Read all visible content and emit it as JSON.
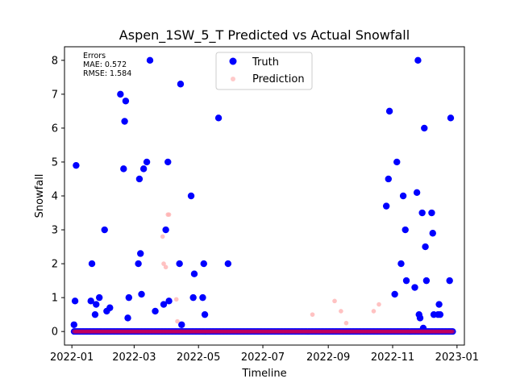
{
  "chart_data": {
    "type": "scatter",
    "title": "Aspen_1SW_5_T Predicted vs Actual Snowfall",
    "xlabel": "Timeline",
    "ylabel": "Snowfall",
    "xlim": [
      "2021-12-25",
      "2023-01-08"
    ],
    "ylim": [
      -0.4,
      8.4
    ],
    "x_ticks": [
      "2022-01",
      "2022-03",
      "2022-05",
      "2022-07",
      "2022-09",
      "2022-11",
      "2023-01"
    ],
    "y_ticks": [
      0,
      1,
      2,
      3,
      4,
      5,
      6,
      7,
      8
    ],
    "legend": {
      "placement": "upper-center",
      "entries": [
        "Truth",
        "Prediction"
      ]
    },
    "errors_box": {
      "heading": "Errors",
      "mae": "MAE: 0.572",
      "rmse": "RMSE: 1.584"
    },
    "colors": {
      "truth": "#0000ff",
      "prediction": "#ffb3b3",
      "zero_marker": "#cc0055"
    },
    "series": [
      {
        "name": "Truth",
        "points": [
          [
            "2022-01-03",
            0.2
          ],
          [
            "2022-01-04",
            0.9
          ],
          [
            "2022-01-05",
            4.9
          ],
          [
            "2022-01-19",
            0.9
          ],
          [
            "2022-01-20",
            2.0
          ],
          [
            "2022-01-23",
            0.5
          ],
          [
            "2022-01-24",
            0.8
          ],
          [
            "2022-01-27",
            1.0
          ],
          [
            "2022-02-01",
            3.0
          ],
          [
            "2022-02-03",
            0.6
          ],
          [
            "2022-02-06",
            0.7
          ],
          [
            "2022-02-16",
            7.0
          ],
          [
            "2022-02-19",
            4.8
          ],
          [
            "2022-02-20",
            6.2
          ],
          [
            "2022-02-21",
            6.8
          ],
          [
            "2022-02-23",
            0.4
          ],
          [
            "2022-02-24",
            1.0
          ],
          [
            "2022-03-05",
            2.0
          ],
          [
            "2022-03-06",
            4.5
          ],
          [
            "2022-03-07",
            2.3
          ],
          [
            "2022-03-08",
            1.1
          ],
          [
            "2022-03-10",
            4.8
          ],
          [
            "2022-03-13",
            5.0
          ],
          [
            "2022-03-16",
            8.0
          ],
          [
            "2022-03-21",
            0.6
          ],
          [
            "2022-03-29",
            0.8
          ],
          [
            "2022-03-31",
            3.0
          ],
          [
            "2022-04-02",
            5.0
          ],
          [
            "2022-04-03",
            0.9
          ],
          [
            "2022-04-13",
            2.0
          ],
          [
            "2022-04-14",
            7.3
          ],
          [
            "2022-04-15",
            0.2
          ],
          [
            "2022-04-24",
            4.0
          ],
          [
            "2022-04-26",
            1.0
          ],
          [
            "2022-04-27",
            1.7
          ],
          [
            "2022-05-05",
            1.0
          ],
          [
            "2022-05-06",
            2.0
          ],
          [
            "2022-05-07",
            0.5
          ],
          [
            "2022-05-20",
            6.3
          ],
          [
            "2022-05-29",
            2.0
          ],
          [
            "2022-10-26",
            3.7
          ],
          [
            "2022-10-28",
            4.5
          ],
          [
            "2022-10-29",
            6.5
          ],
          [
            "2022-11-03",
            1.1
          ],
          [
            "2022-11-05",
            5.0
          ],
          [
            "2022-11-09",
            2.0
          ],
          [
            "2022-11-11",
            4.0
          ],
          [
            "2022-11-13",
            3.0
          ],
          [
            "2022-11-14",
            1.5
          ],
          [
            "2022-11-22",
            1.3
          ],
          [
            "2022-11-24",
            4.1
          ],
          [
            "2022-11-25",
            8.0
          ],
          [
            "2022-11-26",
            0.5
          ],
          [
            "2022-11-27",
            0.4
          ],
          [
            "2022-11-29",
            3.5
          ],
          [
            "2022-11-30",
            0.1
          ],
          [
            "2022-12-01",
            6.0
          ],
          [
            "2022-12-02",
            2.5
          ],
          [
            "2022-12-03",
            1.5
          ],
          [
            "2022-12-08",
            3.5
          ],
          [
            "2022-12-09",
            2.9
          ],
          [
            "2022-12-10",
            0.5
          ],
          [
            "2022-12-14",
            0.5
          ],
          [
            "2022-12-15",
            0.8
          ],
          [
            "2022-12-16",
            0.5
          ],
          [
            "2022-12-25",
            1.5
          ],
          [
            "2022-12-26",
            6.3
          ]
        ],
        "zero_ranges": [
          [
            "2022-01-03",
            "2022-12-28"
          ]
        ]
      },
      {
        "name": "Prediction",
        "points": [
          [
            "2022-03-28",
            2.8
          ],
          [
            "2022-03-29",
            2.0
          ],
          [
            "2022-03-31",
            1.9
          ],
          [
            "2022-04-02",
            3.45
          ],
          [
            "2022-04-03",
            3.45
          ],
          [
            "2022-04-10",
            0.95
          ],
          [
            "2022-04-11",
            0.3
          ],
          [
            "2022-08-17",
            0.5
          ],
          [
            "2022-09-07",
            0.9
          ],
          [
            "2022-09-13",
            0.6
          ],
          [
            "2022-09-18",
            0.25
          ],
          [
            "2022-10-14",
            0.6
          ],
          [
            "2022-10-19",
            0.8
          ]
        ],
        "zero_ranges": [
          [
            "2022-01-03",
            "2022-12-28"
          ]
        ]
      }
    ]
  }
}
